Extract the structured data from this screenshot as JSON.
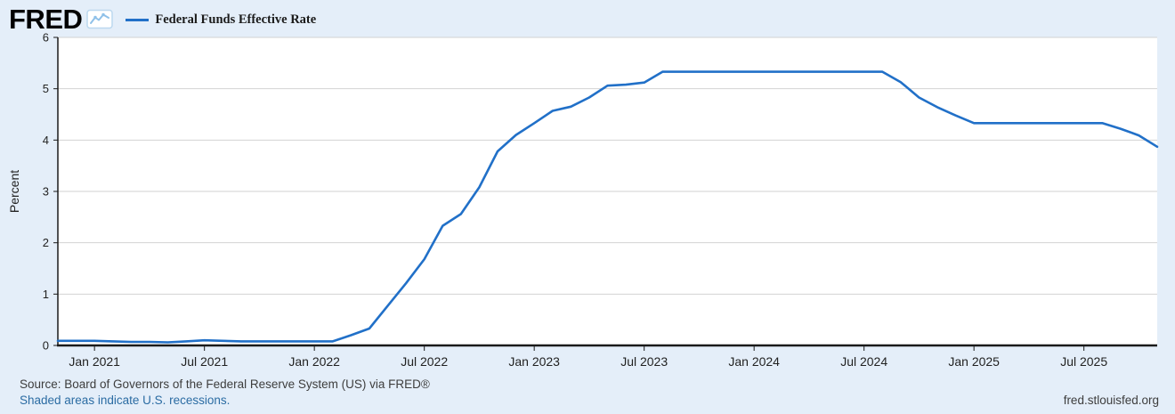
{
  "header": {
    "logo_text": "FRED",
    "logo_icon": "line-chart-icon",
    "legend": {
      "label": "Federal Funds Effective Rate",
      "color": "#2170c8"
    }
  },
  "chart_data": {
    "type": "line",
    "title": "Federal Funds Effective Rate",
    "xlabel": "",
    "ylabel": "Percent",
    "ylim": [
      0,
      6
    ],
    "yticks": [
      0,
      1,
      2,
      3,
      4,
      5,
      6
    ],
    "grid": true,
    "legend_position": "top-left",
    "x": [
      "2020-11",
      "2020-12",
      "2021-01",
      "2021-02",
      "2021-03",
      "2021-04",
      "2021-05",
      "2021-06",
      "2021-07",
      "2021-08",
      "2021-09",
      "2021-10",
      "2021-11",
      "2021-12",
      "2022-01",
      "2022-02",
      "2022-03",
      "2022-04",
      "2022-05",
      "2022-06",
      "2022-07",
      "2022-08",
      "2022-09",
      "2022-10",
      "2022-11",
      "2022-12",
      "2023-01",
      "2023-02",
      "2023-03",
      "2023-04",
      "2023-05",
      "2023-06",
      "2023-07",
      "2023-08",
      "2023-09",
      "2023-10",
      "2023-11",
      "2023-12",
      "2024-01",
      "2024-02",
      "2024-03",
      "2024-04",
      "2024-05",
      "2024-06",
      "2024-07",
      "2024-08",
      "2024-09",
      "2024-10",
      "2024-11",
      "2024-12",
      "2025-01",
      "2025-02",
      "2025-03",
      "2025-04",
      "2025-05",
      "2025-06",
      "2025-07",
      "2025-08",
      "2025-09",
      "2025-10",
      "2025-11"
    ],
    "xticks": [
      {
        "month": "2021-01",
        "label": "Jan 2021"
      },
      {
        "month": "2021-07",
        "label": "Jul 2021"
      },
      {
        "month": "2022-01",
        "label": "Jan 2022"
      },
      {
        "month": "2022-07",
        "label": "Jul 2022"
      },
      {
        "month": "2023-01",
        "label": "Jan 2023"
      },
      {
        "month": "2023-07",
        "label": "Jul 2023"
      },
      {
        "month": "2024-01",
        "label": "Jan 2024"
      },
      {
        "month": "2024-07",
        "label": "Jul 2024"
      },
      {
        "month": "2025-01",
        "label": "Jan 2025"
      },
      {
        "month": "2025-07",
        "label": "Jul 2025"
      }
    ],
    "series": [
      {
        "name": "Federal Funds Effective Rate",
        "color": "#2170c8",
        "values": [
          0.09,
          0.09,
          0.09,
          0.08,
          0.07,
          0.07,
          0.06,
          0.08,
          0.1,
          0.09,
          0.08,
          0.08,
          0.08,
          0.08,
          0.08,
          0.08,
          0.2,
          0.33,
          0.77,
          1.21,
          1.68,
          2.33,
          2.56,
          3.08,
          3.78,
          4.1,
          4.33,
          4.57,
          4.65,
          4.83,
          5.06,
          5.08,
          5.12,
          5.33,
          5.33,
          5.33,
          5.33,
          5.33,
          5.33,
          5.33,
          5.33,
          5.33,
          5.33,
          5.33,
          5.33,
          5.33,
          5.13,
          4.83,
          4.64,
          4.48,
          4.33,
          4.33,
          4.33,
          4.33,
          4.33,
          4.33,
          4.33,
          4.33,
          4.22,
          4.09,
          3.87
        ]
      }
    ]
  },
  "footer": {
    "source": "Source: Board of Governors of the Federal Reserve System (US) via FRED®",
    "recessions_note": "Shaded areas indicate U.S. recessions.",
    "site": "fred.stlouisfed.org"
  },
  "colors": {
    "background": "#e4eef9",
    "plot_background": "#ffffff",
    "series": "#2170c8",
    "gridline": "#d2d2d2",
    "axis": "#1a1a1a",
    "tick_text": "#222222",
    "link": "#2b6ca3",
    "footer_text": "#3d3d3d"
  }
}
